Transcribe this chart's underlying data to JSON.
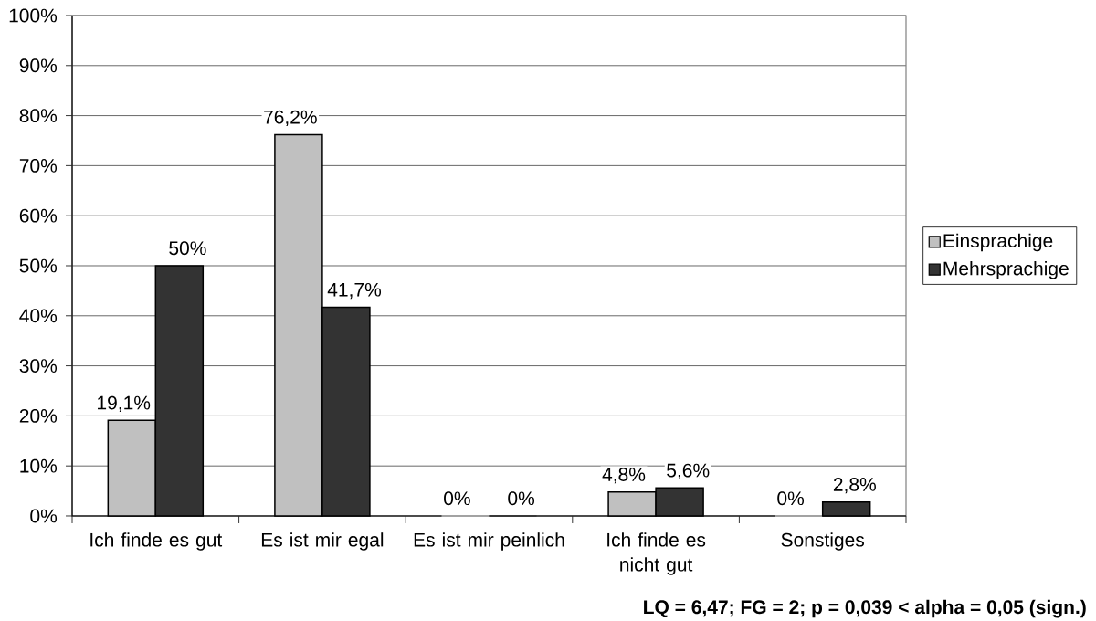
{
  "chart_data": {
    "type": "bar",
    "categories": [
      "Ich finde es gut",
      "Es ist mir egal",
      "Es ist mir peinlich",
      "Ich finde es nicht gut",
      "Sonstiges"
    ],
    "series": [
      {
        "name": "Einsprachige",
        "color": "#c0c0c0",
        "values": [
          19.1,
          76.2,
          0,
          4.8,
          0
        ],
        "value_labels": [
          "19,1%",
          "76,2%",
          "0%",
          "4,8%",
          "0%"
        ]
      },
      {
        "name": "Mehrsprachige",
        "color": "#333333",
        "values": [
          50,
          41.7,
          0,
          5.6,
          2.8
        ],
        "value_labels": [
          "50%",
          "41,7%",
          "0%",
          "5,6%",
          "2,8%"
        ]
      }
    ],
    "ylim": [
      0,
      100
    ],
    "yticks": [
      {
        "value": 0,
        "label": "0%"
      },
      {
        "value": 10,
        "label": "10%"
      },
      {
        "value": 20,
        "label": "20%"
      },
      {
        "value": 30,
        "label": "30%"
      },
      {
        "value": 40,
        "label": "40%"
      },
      {
        "value": 50,
        "label": "50%"
      },
      {
        "value": 60,
        "label": "60%"
      },
      {
        "value": 70,
        "label": "70%"
      },
      {
        "value": 80,
        "label": "80%"
      },
      {
        "value": 90,
        "label": "90%"
      },
      {
        "value": 100,
        "label": "100%"
      }
    ],
    "grid": "y",
    "legend": "right",
    "annotations": [
      "LQ = 6,47; FG = 2; p = 0,039 < alpha = 0,05 (sign.)"
    ]
  }
}
